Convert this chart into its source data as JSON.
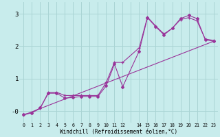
{
  "xlabel": "Windchill (Refroidissement éolien,°C)",
  "bg_color": "#c8ecec",
  "grid_color": "#aad4d4",
  "line_color": "#993399",
  "xlim": [
    -0.5,
    23.5
  ],
  "ylim": [
    -0.35,
    3.35
  ],
  "xtick_labels": [
    "0",
    "1",
    "2",
    "3",
    "4",
    "5",
    "6",
    "7",
    "8",
    "9",
    "10",
    "11",
    "12",
    "",
    "14",
    "15",
    "16",
    "17",
    "18",
    "19",
    "20",
    "21",
    "22",
    "23"
  ],
  "series1_x": [
    0,
    1,
    2,
    3,
    4,
    5,
    6,
    7,
    8,
    9,
    10,
    11,
    12,
    14,
    15,
    16,
    17,
    18,
    19,
    20,
    21,
    22,
    23
  ],
  "series1_y": [
    -0.1,
    -0.05,
    0.1,
    0.55,
    0.55,
    0.4,
    0.42,
    0.45,
    0.45,
    0.45,
    0.78,
    1.45,
    0.75,
    1.85,
    2.88,
    2.6,
    2.35,
    2.55,
    2.85,
    2.95,
    2.85,
    2.2,
    2.15
  ],
  "series2_x": [
    0,
    1,
    2,
    3,
    4,
    5,
    6,
    7,
    8,
    9,
    10,
    11,
    12,
    14,
    15,
    16,
    17,
    18,
    19,
    20,
    21,
    22,
    23
  ],
  "series2_y": [
    -0.12,
    -0.05,
    0.08,
    0.58,
    0.58,
    0.48,
    0.48,
    0.48,
    0.48,
    0.48,
    0.88,
    1.5,
    1.5,
    1.95,
    2.9,
    2.62,
    2.38,
    2.55,
    2.82,
    2.88,
    2.78,
    2.22,
    2.18
  ],
  "series3_x": [
    0,
    23
  ],
  "series3_y": [
    -0.12,
    2.15
  ]
}
